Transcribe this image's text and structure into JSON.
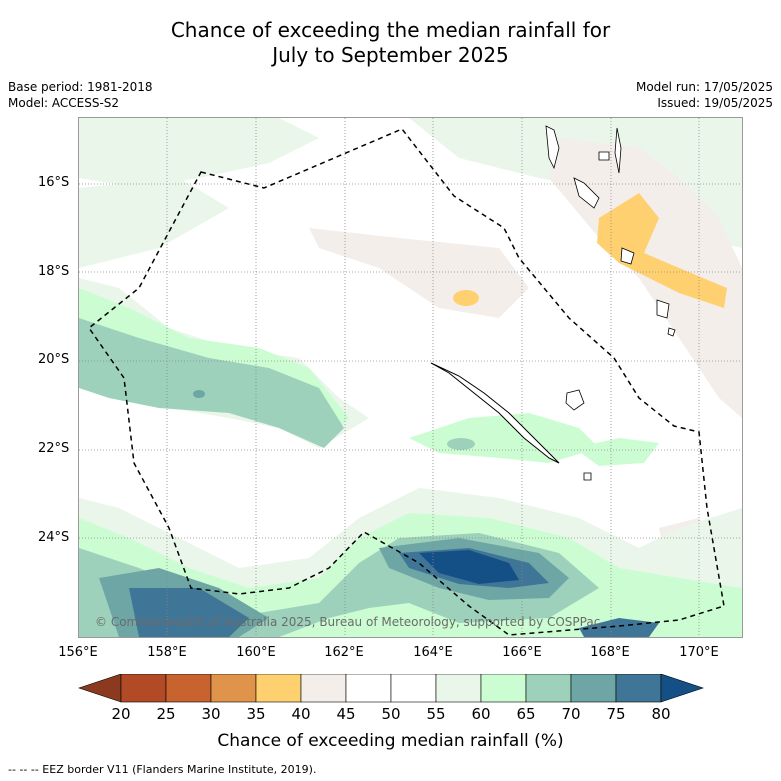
{
  "title_line1": "Chance of exceeding the median rainfall for",
  "title_line2": "July to September 2025",
  "base_period": "Base period: 1981-2018",
  "model": "Model: ACCESS-S2",
  "model_run": "Model run: 17/05/2025",
  "issued": "Issued: 19/05/2025",
  "y_ticks": [
    "16°S",
    "18°S",
    "20°S",
    "22°S",
    "24°S"
  ],
  "x_ticks": [
    "156°E",
    "158°E",
    "160°E",
    "162°E",
    "164°E",
    "166°E",
    "168°E",
    "170°E"
  ],
  "copyright": "© Commonwealth of Australia 2025, Bureau of Meteorology, supported by COSPPac",
  "colorbar": {
    "ticks": [
      "20",
      "25",
      "30",
      "35",
      "40",
      "45",
      "50",
      "55",
      "60",
      "65",
      "70",
      "75",
      "80"
    ],
    "colors": [
      "#8c3a1f",
      "#b24a26",
      "#c8622f",
      "#e0944b",
      "#ffd070",
      "#f3eeea",
      "#ffffff",
      "#ffffff",
      "#eaf6ea",
      "#ccfdd2",
      "#9dd1bb",
      "#6ea6a6",
      "#3f7596",
      "#145086"
    ],
    "label": "Chance of exceeding median rainfall (%)"
  },
  "footnote": "--  --  -- EEZ border V11 (Flanders Marine Institute, 2019)."
}
